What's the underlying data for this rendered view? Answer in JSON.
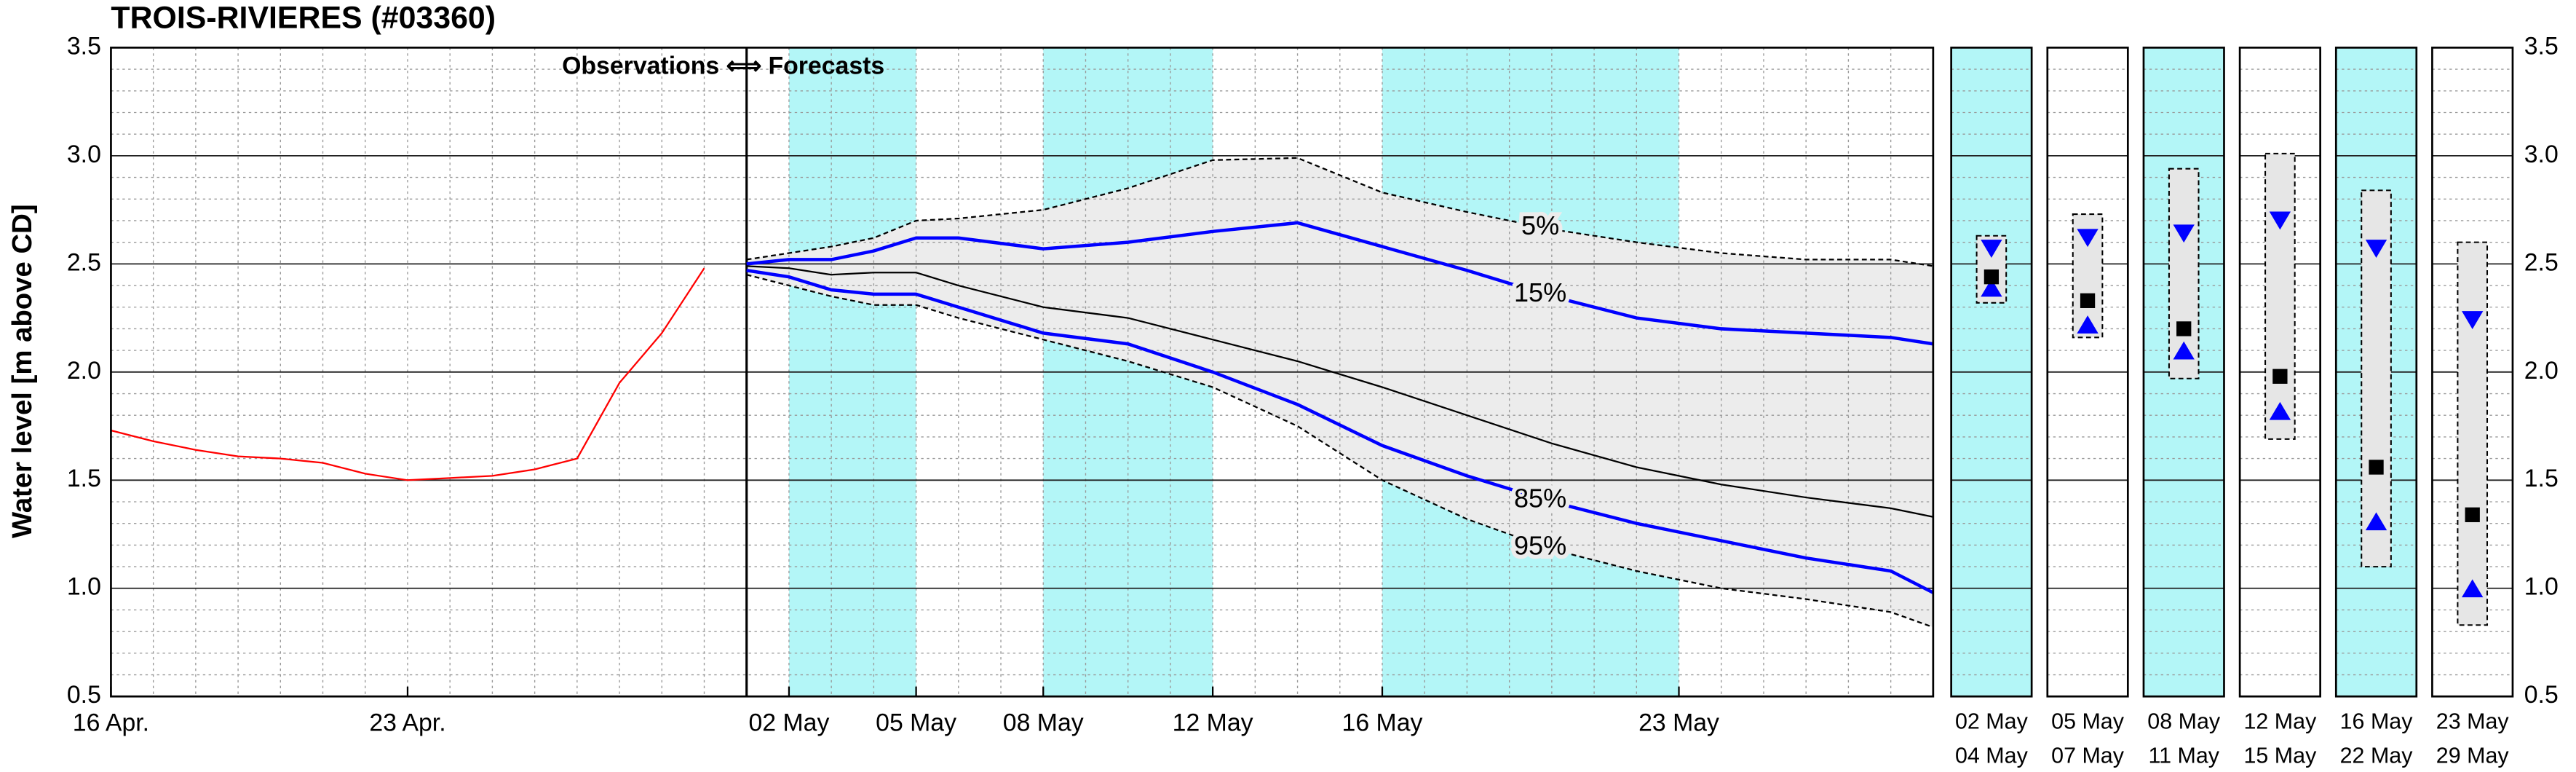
{
  "chart_data": [
    {
      "type": "line",
      "title": "TROIS-RIVIERES (#03360)",
      "ylabel": "Water level [m above CD]",
      "annotation": "Observations ⟺ Forecasts",
      "xlim": [
        16,
        59
      ],
      "xticks": [
        {
          "value": 16,
          "label": "16 Apr."
        },
        {
          "value": 23,
          "label": "23 Apr."
        },
        {
          "value": 32,
          "label": "02 May"
        },
        {
          "value": 35,
          "label": "05 May"
        },
        {
          "value": 38,
          "label": "08 May"
        },
        {
          "value": 42,
          "label": "12 May"
        },
        {
          "value": 46,
          "label": "16 May"
        },
        {
          "value": 53,
          "label": "23 May"
        }
      ],
      "ylim": [
        0.5,
        3.5
      ],
      "yticks": [
        0.5,
        {
          "value": 1,
          "label": "1.0"
        },
        1.5,
        {
          "value": 2,
          "label": "2.0"
        },
        2.5,
        {
          "value": 3,
          "label": "3.0"
        },
        3.5
      ],
      "grid": true,
      "forecast_start": 31,
      "shaded_periods": [
        [
          32,
          35
        ],
        [
          38,
          42
        ],
        [
          46,
          53
        ]
      ],
      "shade_color": "#b3f6f7",
      "band_color": "#ececec",
      "series": [
        {
          "color": "#ff0000",
          "style": "solid",
          "x": [
            16,
            17,
            18,
            19,
            20,
            21,
            22,
            23,
            24,
            25,
            26,
            27,
            28,
            29,
            30
          ],
          "values": [
            1.73,
            1.68,
            1.64,
            1.61,
            1.6,
            1.58,
            1.53,
            1.5,
            1.51,
            1.52,
            1.55,
            1.6,
            1.95,
            2.18,
            2.48
          ]
        },
        {
          "name": "5%",
          "color": "#000000",
          "style": "dashed",
          "x": [
            31,
            32,
            33,
            34,
            35,
            36,
            38,
            40,
            42,
            44,
            46,
            48,
            50,
            52,
            54,
            56,
            58,
            59
          ],
          "values": [
            2.52,
            2.55,
            2.58,
            2.62,
            2.7,
            2.71,
            2.75,
            2.85,
            2.98,
            2.99,
            2.83,
            2.74,
            2.66,
            2.6,
            2.55,
            2.52,
            2.52,
            2.49
          ]
        },
        {
          "name": "15%",
          "color": "#0000ff",
          "style": "thick",
          "x": [
            31,
            32,
            33,
            34,
            35,
            36,
            38,
            40,
            42,
            44,
            46,
            48,
            50,
            52,
            54,
            56,
            58,
            59
          ],
          "values": [
            2.5,
            2.52,
            2.52,
            2.56,
            2.62,
            2.62,
            2.57,
            2.6,
            2.65,
            2.69,
            2.58,
            2.47,
            2.35,
            2.25,
            2.2,
            2.18,
            2.16,
            2.13
          ]
        },
        {
          "color": "#000000",
          "style": "solid",
          "x": [
            31,
            32,
            33,
            34,
            35,
            36,
            38,
            40,
            42,
            44,
            46,
            48,
            50,
            52,
            54,
            56,
            58,
            59
          ],
          "values": [
            2.49,
            2.48,
            2.45,
            2.46,
            2.46,
            2.4,
            2.3,
            2.25,
            2.15,
            2.05,
            1.93,
            1.8,
            1.67,
            1.56,
            1.48,
            1.42,
            1.37,
            1.33
          ]
        },
        {
          "name": "85%",
          "color": "#0000ff",
          "style": "thick",
          "x": [
            31,
            32,
            33,
            34,
            35,
            36,
            38,
            40,
            42,
            44,
            46,
            48,
            50,
            52,
            54,
            56,
            58,
            59
          ],
          "values": [
            2.47,
            2.44,
            2.38,
            2.36,
            2.36,
            2.3,
            2.18,
            2.13,
            2.0,
            1.85,
            1.66,
            1.52,
            1.4,
            1.3,
            1.22,
            1.14,
            1.08,
            0.98
          ]
        },
        {
          "name": "95%",
          "color": "#000000",
          "style": "dashed",
          "x": [
            31,
            32,
            33,
            34,
            35,
            36,
            38,
            40,
            42,
            44,
            46,
            48,
            50,
            52,
            54,
            56,
            58,
            59
          ],
          "values": [
            2.45,
            2.4,
            2.35,
            2.31,
            2.31,
            2.25,
            2.15,
            2.05,
            1.93,
            1.75,
            1.5,
            1.32,
            1.18,
            1.08,
            1.0,
            0.95,
            0.89,
            0.82
          ]
        }
      ]
    },
    {
      "type": "range-box",
      "ylim": [
        0.5,
        3.5
      ],
      "yticks": [
        0.5,
        {
          "value": 1,
          "label": "1.0"
        },
        1.5,
        {
          "value": 2,
          "label": "2.0"
        },
        2.5,
        {
          "value": 3,
          "label": "3.0"
        },
        3.5
      ],
      "shade_color": "#b3f6f7",
      "box_color": "#e6e6e6",
      "median_color": "#000000",
      "marker_color": "#0000ff",
      "periods": [
        {
          "start": "02 May",
          "end": "04 May",
          "shaded": true,
          "low": 2.32,
          "high": 2.63,
          "median": 2.44,
          "p15": 2.57,
          "p85": 2.39
        },
        {
          "start": "05 May",
          "end": "07 May",
          "shaded": false,
          "low": 2.16,
          "high": 2.73,
          "median": 2.33,
          "p15": 2.62,
          "p85": 2.22
        },
        {
          "start": "08 May",
          "end": "11 May",
          "shaded": true,
          "low": 1.97,
          "high": 2.94,
          "median": 2.2,
          "p15": 2.64,
          "p85": 2.1
        },
        {
          "start": "12 May",
          "end": "15 May",
          "shaded": false,
          "low": 1.69,
          "high": 3.01,
          "median": 1.98,
          "p15": 2.7,
          "p85": 1.82
        },
        {
          "start": "16 May",
          "end": "22 May",
          "shaded": true,
          "low": 1.1,
          "high": 2.84,
          "median": 1.56,
          "p15": 2.57,
          "p85": 1.31
        },
        {
          "start": "23 May",
          "end": "29 May",
          "shaded": false,
          "low": 0.83,
          "high": 2.6,
          "median": 1.34,
          "p15": 2.24,
          "p85": 1.0
        }
      ]
    }
  ]
}
